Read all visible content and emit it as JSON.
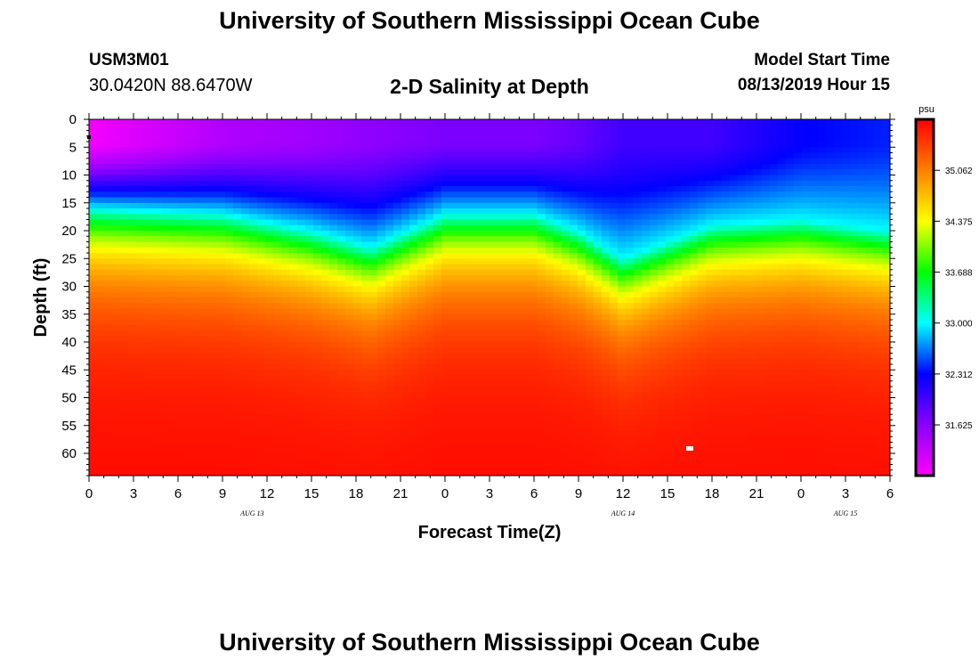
{
  "page": {
    "title": "University of Southern Mississippi Ocean Cube",
    "footer_title": "University of Southern Mississippi Ocean Cube",
    "station_id": "USM3M01",
    "station_coords": "30.0420N 88.6470W",
    "model_start_label": "Model Start Time",
    "model_start_value": "08/13/2019 Hour 15"
  },
  "chart_data": {
    "type": "heatmap",
    "title": "2-D Salinity at Depth",
    "xlabel": "Forecast Time(Z)",
    "ylabel": "Depth (ft)",
    "colorbar_label": "psu",
    "colorbar_ticks": [
      "35.062",
      "34.375",
      "33.688",
      "33.000",
      "32.312",
      "31.625"
    ],
    "colorbar_tick_values": [
      35.062,
      34.375,
      33.688,
      33.0,
      32.312,
      31.625
    ],
    "color_range": [
      30.94,
      35.75
    ],
    "colors": [
      "#ff00ff",
      "#8a00ff",
      "#0000ff",
      "#00ffff",
      "#00ff00",
      "#ffff00",
      "#ff7f00",
      "#ff0000"
    ],
    "x_tick_labels": [
      "0",
      "3",
      "6",
      "9",
      "12",
      "15",
      "18",
      "21",
      "0",
      "3",
      "6",
      "9",
      "12",
      "15",
      "18",
      "21",
      "0",
      "3",
      "6"
    ],
    "x_tick_hours": [
      0,
      3,
      6,
      9,
      12,
      15,
      18,
      21,
      24,
      27,
      30,
      33,
      36,
      39,
      42,
      45,
      48,
      51,
      54
    ],
    "x_range": [
      0,
      54
    ],
    "date_labels": [
      {
        "label": "AUG 13",
        "hour": 11
      },
      {
        "label": "AUG 14",
        "hour": 36
      },
      {
        "label": "AUG 15",
        "hour": 51
      }
    ],
    "y_tick_labels": [
      "0",
      "5",
      "10",
      "15",
      "20",
      "25",
      "30",
      "35",
      "40",
      "45",
      "50",
      "55",
      "60"
    ],
    "y_tick_values": [
      0,
      5,
      10,
      15,
      20,
      25,
      30,
      35,
      40,
      45,
      50,
      55,
      60
    ],
    "y_range": [
      0,
      64
    ],
    "profile_keys": {
      "hours": [
        0,
        9,
        15,
        19,
        24,
        30,
        33,
        36,
        42,
        48,
        54
      ],
      "surface_psu": [
        31.0,
        31.4,
        31.5,
        31.6,
        31.7,
        31.7,
        31.8,
        32.0,
        32.0,
        32.3,
        32.4
      ],
      "halocline_depth_ft": [
        16,
        17,
        20,
        23,
        17,
        17,
        20,
        25,
        19,
        18,
        20
      ],
      "bottom_psu": [
        35.7,
        35.7,
        35.7,
        35.7,
        35.7,
        35.7,
        35.7,
        35.7,
        35.7,
        35.7,
        35.7
      ]
    }
  }
}
